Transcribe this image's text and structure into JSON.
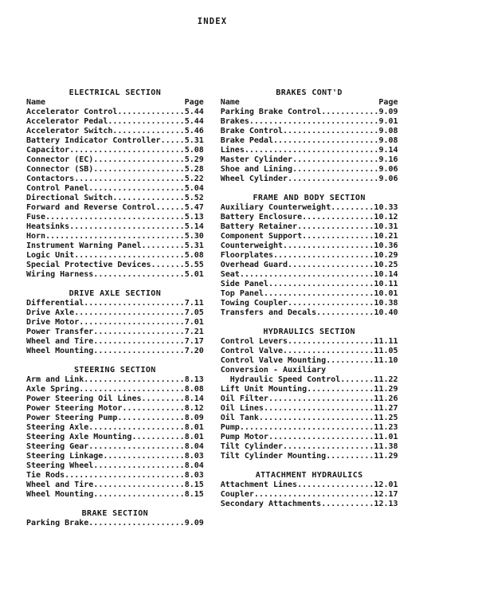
{
  "page_title": "INDEX",
  "line_total_chars": 37,
  "column_labels": {
    "name": "Name",
    "page": "Page"
  },
  "colors": {
    "text": "#161616",
    "background": "#ffffff"
  },
  "columns": [
    {
      "sections": [
        {
          "heading": "ELECTRICAL SECTION",
          "show_labels": true,
          "entries": [
            [
              "Accelerator Control",
              "5.44"
            ],
            [
              "Accelerator Pedal",
              "5.44"
            ],
            [
              "Accelerator Switch",
              "5.46"
            ],
            [
              "Battery Indicator Controller",
              "5.31"
            ],
            [
              "Capacitor",
              "5.08"
            ],
            [
              "Connector (EC)",
              "5.29"
            ],
            [
              "Connector (SB)",
              "5.28"
            ],
            [
              "Contactors",
              "5.22"
            ],
            [
              "Control Panel",
              "5.04"
            ],
            [
              "Directional Switch",
              "5.52"
            ],
            [
              "Forward and Reverse Control",
              "5.47"
            ],
            [
              "Fuse",
              "5.13"
            ],
            [
              "Heatsinks",
              "5.14"
            ],
            [
              "Horn",
              "5.30"
            ],
            [
              "Instrument Warning Panel",
              "5.31"
            ],
            [
              "Logic Unit",
              "5.08"
            ],
            [
              "Special Protective Devices",
              "5.55"
            ],
            [
              "Wiring Harness",
              "5.01"
            ]
          ]
        },
        {
          "heading": "DRIVE AXLE SECTION",
          "show_labels": false,
          "entries": [
            [
              "Differential",
              "7.11"
            ],
            [
              "Drive Axle",
              "7.05"
            ],
            [
              "Drive Motor",
              "7.01"
            ],
            [
              "Power Transfer",
              "7.21"
            ],
            [
              "Wheel and Tire",
              "7.17"
            ],
            [
              "Wheel Mounting",
              "7.20"
            ]
          ]
        },
        {
          "heading": "STEERING SECTION",
          "show_labels": false,
          "entries": [
            [
              "Arm and Link",
              "8.13"
            ],
            [
              "Axle Spring",
              "8.08"
            ],
            [
              "Power Steering Oil Lines",
              "8.14"
            ],
            [
              "Power Steering Motor",
              "8.12"
            ],
            [
              "Power Steering Pump",
              "8.09"
            ],
            [
              "Steering Axle",
              "8.01"
            ],
            [
              "Steering Axle Mounting",
              "8.01"
            ],
            [
              "Steering Gear",
              "8.04"
            ],
            [
              "Steering Linkage",
              "8.03"
            ],
            [
              "Steering Wheel",
              "8.04"
            ],
            [
              "Tie Rods",
              "8.03"
            ],
            [
              "Wheel and Tire",
              "8.15"
            ],
            [
              "Wheel Mounting",
              "8.15"
            ]
          ]
        },
        {
          "heading": "BRAKE SECTION",
          "show_labels": false,
          "entries": [
            [
              "Parking Brake",
              "9.09"
            ]
          ]
        }
      ]
    },
    {
      "sections": [
        {
          "heading": "BRAKES CONT'D",
          "show_labels": true,
          "entries": [
            [
              "Parking Brake Control",
              "9.09"
            ],
            [
              "Brakes",
              "9.01"
            ],
            [
              "Brake Control",
              "9.08"
            ],
            [
              "Brake Pedal",
              "9.08"
            ],
            [
              "Lines",
              "9.14"
            ],
            [
              "Master Cylinder",
              "9.16"
            ],
            [
              "Shoe and Lining",
              "9.06"
            ],
            [
              "Wheel Cylinder",
              "9.06"
            ]
          ]
        },
        {
          "heading": "FRAME AND BODY SECTION",
          "show_labels": false,
          "entries": [
            [
              "Auxiliary Counterweight",
              "10.33"
            ],
            [
              "Battery Enclosure",
              "10.12"
            ],
            [
              "Battery Retainer",
              "10.31"
            ],
            [
              "Component Support",
              "10.21"
            ],
            [
              "Counterweight",
              "10.36"
            ],
            [
              "Floorplates",
              "10.29"
            ],
            [
              "Overhead Guard",
              "10.25"
            ],
            [
              "Seat",
              "10.14"
            ],
            [
              "Side Panel",
              "10.11"
            ],
            [
              "Top Panel",
              "10.01"
            ],
            [
              "Towing Coupler",
              "10.38"
            ],
            [
              "Transfers and Decals",
              "10.40"
            ]
          ]
        },
        {
          "heading": "HYDRAULICS SECTION",
          "show_labels": false,
          "entries": [
            [
              "Control Levers",
              "11.11"
            ],
            [
              "Control Valve",
              "11.05"
            ],
            [
              "Control Valve Mounting",
              "11.10"
            ],
            [
              "Conversion - Auxiliary",
              ""
            ],
            [
              "  Hydraulic Speed Control",
              "11.22"
            ],
            [
              "Lift Unit Mounting",
              "11.29"
            ],
            [
              "Oil Filter",
              "11.26"
            ],
            [
              "Oil Lines",
              "11.27"
            ],
            [
              "Oil Tank",
              "11.25"
            ],
            [
              "Pump",
              "11.23"
            ],
            [
              "Pump Motor",
              "11.01"
            ],
            [
              "Tilt Cylinder",
              "11.38"
            ],
            [
              "Tilt Cylinder Mounting",
              "11.29"
            ]
          ]
        },
        {
          "heading": "ATTACHMENT HYDRAULICS",
          "show_labels": false,
          "entries": [
            [
              "Attachment Lines",
              "12.01"
            ],
            [
              "Coupler",
              "12.17"
            ],
            [
              "Secondary Attachments",
              "12.13"
            ]
          ]
        }
      ]
    }
  ]
}
